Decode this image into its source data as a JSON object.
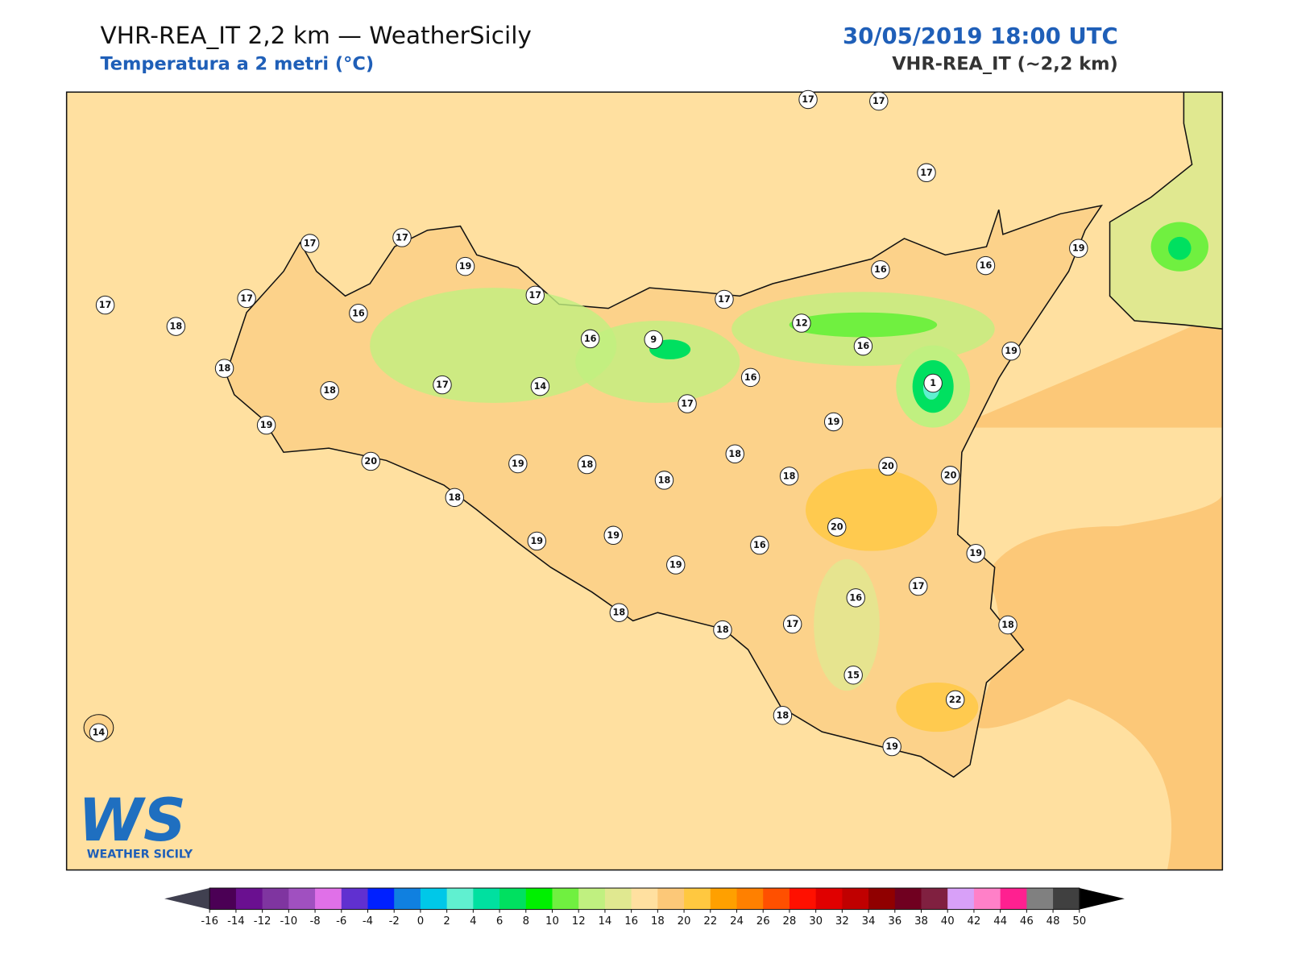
{
  "header": {
    "title": "VHR-REA_IT 2,2 km — WeatherSicily",
    "subtitle": "Temperatura a 2 metri (°C)",
    "date": "30/05/2019 18:00 UTC",
    "model": "VHR-REA_IT (~2,2 km)"
  },
  "stations": [
    17,
    17,
    17,
    17,
    17,
    19,
    17,
    17,
    18,
    16,
    17,
    17,
    16,
    16,
    19,
    18,
    18,
    16,
    9,
    12,
    16,
    19,
    17,
    14,
    16,
    1,
    17,
    19,
    19,
    20,
    19,
    18,
    18,
    18,
    18,
    20,
    20,
    18,
    20,
    19,
    19,
    19,
    16,
    19,
    17,
    16,
    18,
    18,
    17,
    18,
    15,
    22,
    18,
    19,
    14
  ],
  "colorbar": {
    "ticks": [
      -16,
      -14,
      -12,
      -10,
      -8,
      -6,
      -4,
      -2,
      0,
      2,
      4,
      6,
      8,
      10,
      12,
      14,
      16,
      18,
      20,
      22,
      24,
      26,
      28,
      30,
      32,
      34,
      36,
      38,
      40,
      42,
      44,
      46,
      48,
      50
    ],
    "colors": [
      "#4b0055",
      "#6a1090",
      "#7f35a0",
      "#a050c0",
      "#e070e8",
      "#6030d0",
      "#0020ff",
      "#1080e0",
      "#00c8e8",
      "#60f0d0",
      "#00e0a0",
      "#00e060",
      "#00f000",
      "#70f040",
      "#c0f080",
      "#e0e890",
      "#ffe0a0",
      "#fcc878",
      "#ffc840",
      "#ffa000",
      "#ff8000",
      "#ff5000",
      "#ff1000",
      "#e00000",
      "#c00000",
      "#900000",
      "#700020",
      "#802040",
      "#d8a0f8",
      "#ff80c8",
      "#ff2090",
      "#808080",
      "#404040"
    ],
    "under": "#404050",
    "over": "#000000"
  },
  "logo": {
    "mark": "WS",
    "name": "WEATHER SICILY"
  }
}
